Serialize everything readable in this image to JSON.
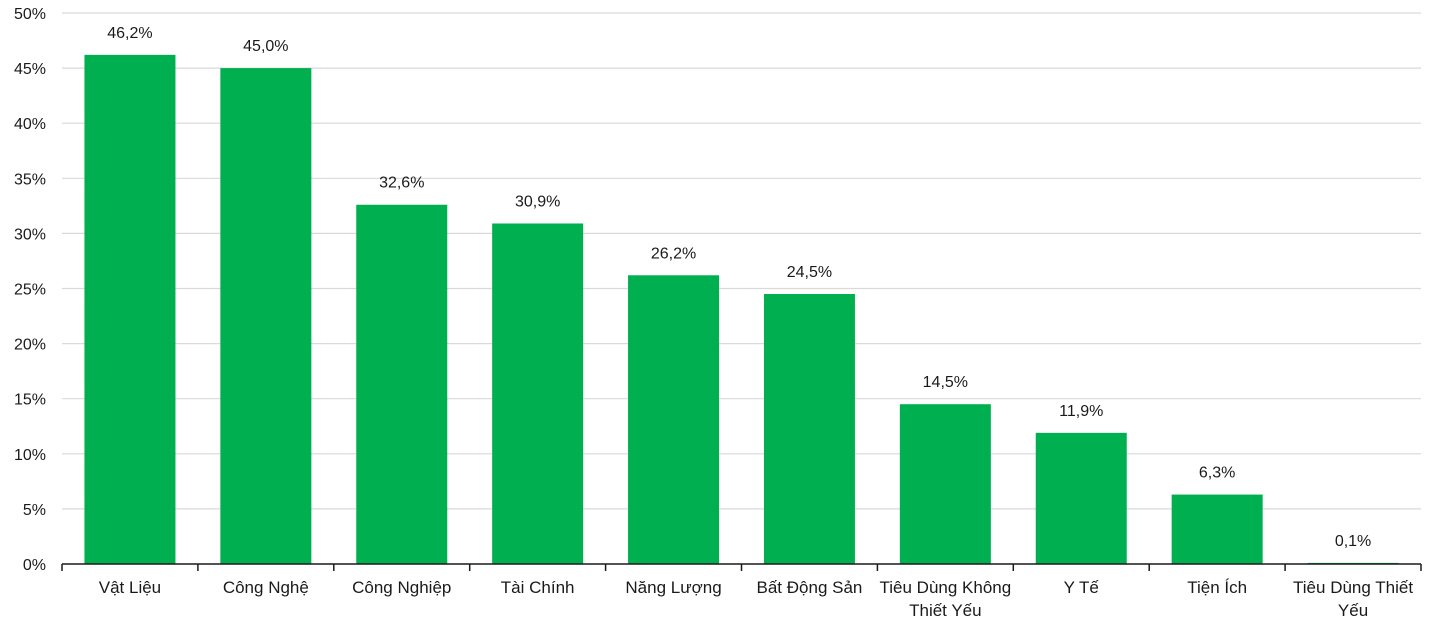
{
  "chart_data": {
    "type": "bar",
    "title": "",
    "xlabel": "",
    "ylabel": "",
    "categories": [
      [
        "Vật Liệu"
      ],
      [
        "Công Nghệ"
      ],
      [
        "Công Nghiệp"
      ],
      [
        "Tài Chính"
      ],
      [
        "Năng Lượng"
      ],
      [
        "Bất Động Sản"
      ],
      [
        "Tiêu Dùng Không",
        "Thiết Yếu"
      ],
      [
        "Y Tế"
      ],
      [
        "Tiện Ích"
      ],
      [
        "Tiêu Dùng Thiết",
        "Yếu"
      ]
    ],
    "values": [
      46.2,
      45.0,
      32.6,
      30.9,
      26.2,
      24.5,
      14.5,
      11.9,
      6.3,
      0.1
    ],
    "data_labels": [
      "46,2%",
      "45,0%",
      "32,6%",
      "30,9%",
      "26,2%",
      "24,5%",
      "14,5%",
      "11,9%",
      "6,3%",
      "0,1%"
    ],
    "ylim": [
      0,
      50
    ],
    "yticks": [
      0,
      5,
      10,
      15,
      20,
      25,
      30,
      35,
      40,
      45,
      50
    ],
    "ytick_labels": [
      "0%",
      "5%",
      "10%",
      "15%",
      "20%",
      "25%",
      "30%",
      "35%",
      "40%",
      "45%",
      "50%"
    ],
    "grid": true,
    "legend": "none",
    "bar_color": "#00b050"
  }
}
